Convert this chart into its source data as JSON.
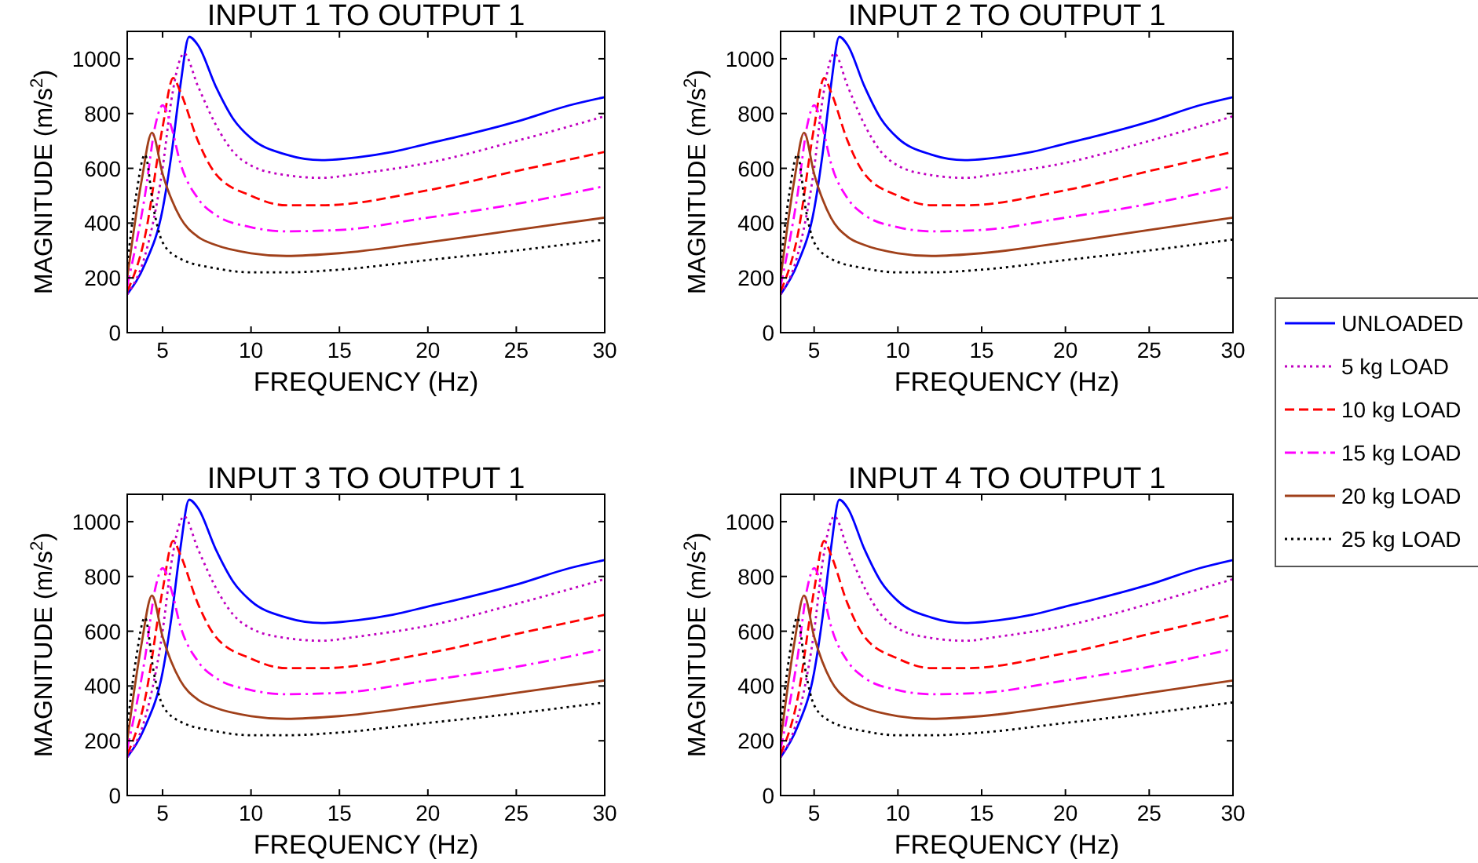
{
  "chart_data": [
    {
      "type": "line",
      "title": "INPUT 1 TO OUTPUT 1",
      "xlabel": "FREQUENCY (Hz)",
      "ylabel": "MAGNITUDE (m/s$^{2}$)",
      "xlim": [
        3,
        30
      ],
      "xticks": [
        5,
        10,
        15,
        20,
        25,
        30
      ],
      "ylim": [
        0,
        1100
      ],
      "yticks": [
        0,
        200,
        400,
        600,
        800,
        1000
      ],
      "grid": false,
      "legend": "right",
      "series": [
        {
          "name": "UNLOADED",
          "color": "#0000ff",
          "line_style": "solid",
          "x": [
            3,
            4,
            5,
            5.5,
            6,
            6.5,
            7,
            8,
            9,
            10,
            12,
            14,
            16,
            18,
            20,
            22,
            25,
            28,
            30
          ],
          "values": [
            140,
            250,
            450,
            650,
            900,
            1080,
            1050,
            900,
            780,
            710,
            650,
            630,
            640,
            660,
            690,
            720,
            770,
            830,
            860
          ]
        },
        {
          "name": "5 kg LOAD",
          "color": "#c000c0",
          "line_style": "dotted",
          "x": [
            3,
            4,
            5,
            5.5,
            6,
            6.2,
            7,
            8,
            9,
            10,
            12,
            14,
            16,
            20,
            25,
            30
          ],
          "values": [
            140,
            280,
            600,
            850,
            1000,
            1020,
            900,
            760,
            660,
            610,
            575,
            565,
            580,
            620,
            700,
            790
          ]
        },
        {
          "name": "10 kg LOAD",
          "color": "#ff0000",
          "line_style": "dashed",
          "x": [
            3,
            4,
            5,
            5.6,
            6,
            7,
            8,
            10,
            12,
            14,
            20,
            25,
            30
          ],
          "values": [
            150,
            350,
            750,
            930,
            880,
            700,
            580,
            500,
            465,
            465,
            520,
            590,
            660
          ]
        },
        {
          "name": "15 kg LOAD",
          "color": "#ff00ff",
          "line_style": "dashdot",
          "x": [
            3,
            4,
            4.6,
            5,
            5.5,
            6,
            7,
            8,
            10,
            12,
            15,
            20,
            25,
            30
          ],
          "values": [
            170,
            500,
            760,
            830,
            750,
            620,
            490,
            430,
            385,
            370,
            375,
            420,
            470,
            535
          ]
        },
        {
          "name": "20 kg LOAD",
          "color": "#a0401a",
          "line_style": "solid",
          "x": [
            3,
            3.8,
            4.4,
            5,
            6,
            7,
            8,
            10,
            12,
            15,
            20,
            25,
            30
          ],
          "values": [
            200,
            550,
            730,
            580,
            420,
            350,
            320,
            290,
            280,
            290,
            330,
            375,
            420
          ]
        },
        {
          "name": "25 kg LOAD",
          "color": "#000000",
          "line_style": "dotted",
          "x": [
            3,
            3.5,
            4,
            4.5,
            5,
            6,
            8,
            10,
            12,
            15,
            20,
            25,
            30
          ],
          "values": [
            250,
            500,
            650,
            450,
            330,
            270,
            235,
            220,
            220,
            230,
            265,
            300,
            340
          ]
        }
      ]
    },
    {
      "type": "line",
      "title": "INPUT 2 TO OUTPUT 1",
      "xlabel": "FREQUENCY (Hz)",
      "ylabel": "MAGNITUDE (m/s$^{2}$)",
      "xlim": [
        3,
        30
      ],
      "xticks": [
        5,
        10,
        15,
        20,
        25,
        30
      ],
      "ylim": [
        0,
        1100
      ],
      "yticks": [
        0,
        200,
        400,
        600,
        800,
        1000
      ],
      "grid": false,
      "series": [
        {
          "color": "#0000ff",
          "line_style": "solid",
          "x": [
            3,
            4,
            5,
            5.5,
            6,
            6.5,
            7,
            8,
            9,
            10,
            12,
            14,
            16,
            18,
            20,
            22,
            25,
            28,
            30
          ],
          "values": [
            140,
            250,
            450,
            650,
            900,
            1080,
            1050,
            900,
            780,
            710,
            650,
            630,
            640,
            660,
            690,
            720,
            770,
            830,
            860
          ]
        },
        {
          "color": "#c000c0",
          "line_style": "dotted",
          "x": [
            3,
            4,
            5,
            5.5,
            6,
            6.2,
            7,
            8,
            9,
            10,
            12,
            14,
            16,
            20,
            25,
            30
          ],
          "values": [
            140,
            280,
            600,
            850,
            1000,
            1020,
            900,
            760,
            660,
            610,
            575,
            565,
            580,
            620,
            700,
            790
          ]
        },
        {
          "color": "#ff0000",
          "line_style": "dashed",
          "x": [
            3,
            4,
            5,
            5.6,
            6,
            7,
            8,
            10,
            12,
            14,
            20,
            25,
            30
          ],
          "values": [
            150,
            350,
            750,
            930,
            880,
            700,
            580,
            500,
            465,
            465,
            520,
            590,
            660
          ]
        },
        {
          "color": "#ff00ff",
          "line_style": "dashdot",
          "x": [
            3,
            4,
            4.6,
            5,
            5.5,
            6,
            7,
            8,
            10,
            12,
            15,
            20,
            25,
            30
          ],
          "values": [
            170,
            500,
            760,
            830,
            750,
            620,
            490,
            430,
            385,
            370,
            375,
            420,
            470,
            535
          ]
        },
        {
          "color": "#a0401a",
          "line_style": "solid",
          "x": [
            3,
            3.8,
            4.4,
            5,
            6,
            7,
            8,
            10,
            12,
            15,
            20,
            25,
            30
          ],
          "values": [
            200,
            550,
            730,
            580,
            420,
            350,
            320,
            290,
            280,
            290,
            330,
            375,
            420
          ]
        },
        {
          "color": "#000000",
          "line_style": "dotted",
          "x": [
            3,
            3.5,
            4,
            4.5,
            5,
            6,
            8,
            10,
            12,
            15,
            20,
            25,
            30
          ],
          "values": [
            250,
            500,
            650,
            450,
            330,
            270,
            235,
            220,
            220,
            230,
            265,
            300,
            340
          ]
        }
      ]
    },
    {
      "type": "line",
      "title": "INPUT 3 TO OUTPUT 1",
      "xlabel": "FREQUENCY (Hz)",
      "ylabel": "MAGNITUDE (m/s$^{2}$)",
      "xlim": [
        3,
        30
      ],
      "xticks": [
        5,
        10,
        15,
        20,
        25,
        30
      ],
      "ylim": [
        0,
        1100
      ],
      "yticks": [
        0,
        200,
        400,
        600,
        800,
        1000
      ],
      "grid": false,
      "series": [
        {
          "color": "#0000ff",
          "line_style": "solid",
          "x": [
            3,
            4,
            5,
            5.5,
            6,
            6.5,
            7,
            8,
            9,
            10,
            12,
            14,
            16,
            18,
            20,
            22,
            25,
            28,
            30
          ],
          "values": [
            140,
            250,
            450,
            650,
            900,
            1080,
            1050,
            900,
            780,
            710,
            650,
            630,
            640,
            660,
            690,
            720,
            770,
            830,
            860
          ]
        },
        {
          "color": "#c000c0",
          "line_style": "dotted",
          "x": [
            3,
            4,
            5,
            5.5,
            6,
            6.2,
            7,
            8,
            9,
            10,
            12,
            14,
            16,
            20,
            25,
            30
          ],
          "values": [
            140,
            280,
            600,
            850,
            1000,
            1020,
            900,
            760,
            660,
            610,
            575,
            565,
            580,
            620,
            700,
            790
          ]
        },
        {
          "color": "#ff0000",
          "line_style": "dashed",
          "x": [
            3,
            4,
            5,
            5.6,
            6,
            7,
            8,
            10,
            12,
            14,
            20,
            25,
            30
          ],
          "values": [
            150,
            350,
            750,
            930,
            880,
            700,
            580,
            500,
            465,
            465,
            520,
            590,
            660
          ]
        },
        {
          "color": "#ff00ff",
          "line_style": "dashdot",
          "x": [
            3,
            4,
            4.6,
            5,
            5.5,
            6,
            7,
            8,
            10,
            12,
            15,
            20,
            25,
            30
          ],
          "values": [
            170,
            500,
            760,
            830,
            750,
            620,
            490,
            430,
            385,
            370,
            375,
            420,
            470,
            535
          ]
        },
        {
          "color": "#a0401a",
          "line_style": "solid",
          "x": [
            3,
            3.8,
            4.4,
            5,
            6,
            7,
            8,
            10,
            12,
            15,
            20,
            25,
            30
          ],
          "values": [
            200,
            550,
            730,
            580,
            420,
            350,
            320,
            290,
            280,
            290,
            330,
            375,
            420
          ]
        },
        {
          "color": "#000000",
          "line_style": "dotted",
          "x": [
            3,
            3.5,
            4,
            4.5,
            5,
            6,
            8,
            10,
            12,
            15,
            20,
            25,
            30
          ],
          "values": [
            250,
            500,
            650,
            450,
            330,
            270,
            235,
            220,
            220,
            230,
            265,
            300,
            340
          ]
        }
      ]
    },
    {
      "type": "line",
      "title": "INPUT 4 TO OUTPUT 1",
      "xlabel": "FREQUENCY (Hz)",
      "ylabel": "MAGNITUDE (m/s$^{2}$)",
      "xlim": [
        3,
        30
      ],
      "xticks": [
        5,
        10,
        15,
        20,
        25,
        30
      ],
      "ylim": [
        0,
        1100
      ],
      "yticks": [
        0,
        200,
        400,
        600,
        800,
        1000
      ],
      "grid": false,
      "series": [
        {
          "color": "#0000ff",
          "line_style": "solid",
          "x": [
            3,
            4,
            5,
            5.5,
            6,
            6.5,
            7,
            8,
            9,
            10,
            12,
            14,
            16,
            18,
            20,
            22,
            25,
            28,
            30
          ],
          "values": [
            140,
            250,
            450,
            650,
            900,
            1080,
            1050,
            900,
            780,
            710,
            650,
            630,
            640,
            660,
            690,
            720,
            770,
            830,
            860
          ]
        },
        {
          "color": "#c000c0",
          "line_style": "dotted",
          "x": [
            3,
            4,
            5,
            5.5,
            6,
            6.2,
            7,
            8,
            9,
            10,
            12,
            14,
            16,
            20,
            25,
            30
          ],
          "values": [
            140,
            280,
            600,
            850,
            1000,
            1020,
            900,
            760,
            660,
            610,
            575,
            565,
            580,
            620,
            700,
            790
          ]
        },
        {
          "color": "#ff0000",
          "line_style": "dashed",
          "x": [
            3,
            4,
            5,
            5.6,
            6,
            7,
            8,
            10,
            12,
            14,
            20,
            25,
            30
          ],
          "values": [
            150,
            350,
            750,
            930,
            880,
            700,
            580,
            500,
            465,
            465,
            520,
            590,
            660
          ]
        },
        {
          "color": "#ff00ff",
          "line_style": "dashdot",
          "x": [
            3,
            4,
            4.6,
            5,
            5.5,
            6,
            7,
            8,
            10,
            12,
            15,
            20,
            25,
            30
          ],
          "values": [
            170,
            500,
            760,
            830,
            750,
            620,
            490,
            430,
            385,
            370,
            375,
            420,
            470,
            535
          ]
        },
        {
          "color": "#a0401a",
          "line_style": "solid",
          "x": [
            3,
            3.8,
            4.4,
            5,
            6,
            7,
            8,
            10,
            12,
            15,
            20,
            25,
            30
          ],
          "values": [
            200,
            550,
            730,
            580,
            420,
            350,
            320,
            290,
            280,
            290,
            330,
            375,
            420
          ]
        },
        {
          "color": "#000000",
          "line_style": "dotted",
          "x": [
            3,
            3.5,
            4,
            4.5,
            5,
            6,
            8,
            10,
            12,
            15,
            20,
            25,
            30
          ],
          "values": [
            250,
            500,
            650,
            450,
            330,
            270,
            235,
            220,
            220,
            230,
            265,
            300,
            340
          ]
        }
      ]
    }
  ]
}
